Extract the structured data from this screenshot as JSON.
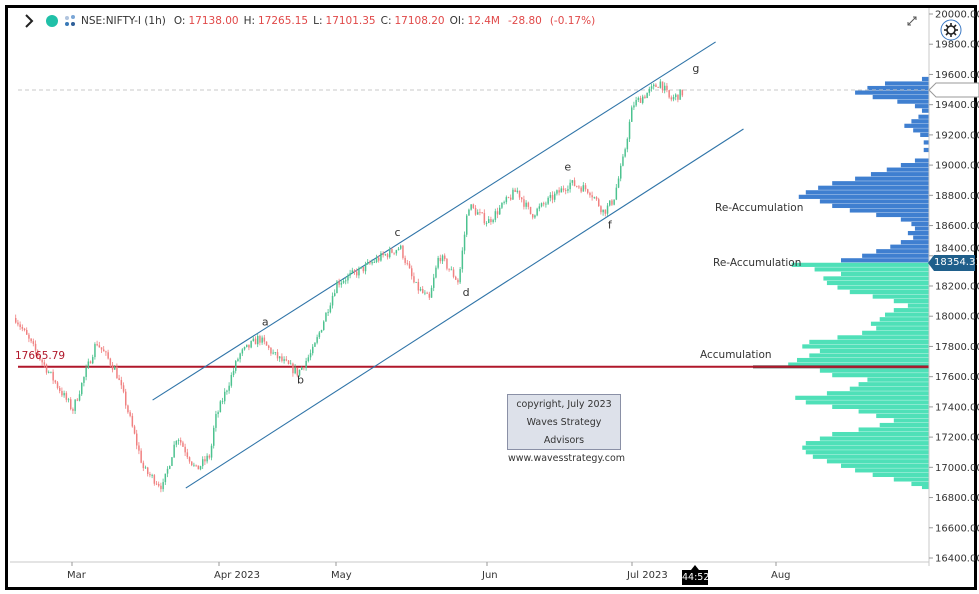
{
  "header": {
    "symbol": "NSE:NIFTY-I (1h)",
    "open_label": "O:",
    "open": "17138.00",
    "high_label": "H:",
    "high": "17265.15",
    "low_label": "L:",
    "low": "17101.35",
    "close_label": "C:",
    "close": "17108.20",
    "oi_label": "OI:",
    "oi": "12.4M",
    "change": "-28.80",
    "change_pct": "(-0.17%)",
    "icons": [
      "chevron-right-icon",
      "status-dot-icon",
      "symbol-logo-icon"
    ]
  },
  "toolbar": {
    "icons": [
      "expand-icon",
      "settings-gear-icon"
    ]
  },
  "colors": {
    "up_candle": "#4cc28f",
    "down_candle": "#f08080",
    "channel": "#2f74a8",
    "support_line": "#b0172a",
    "profile_upper": "#3f7fd0",
    "profile_lower": "#4fe0b8",
    "poc": "#555555",
    "last_price_bg": "#1f5f8b",
    "value_text": "#e04848"
  },
  "reference_line": {
    "price": 17665.79,
    "label": "17665.79"
  },
  "last_price": {
    "value": 18354.31,
    "label": "18354.31"
  },
  "dashed_price": 19497,
  "countdown": "44:52",
  "annotations": [
    {
      "text": "Re-Accumulation"
    },
    {
      "text": "Re-Accumulation"
    },
    {
      "text": "Accumulation"
    }
  ],
  "copyright": {
    "line1": "copyright, July 2023",
    "line2": "Waves Strategy Advisors",
    "line3": "www.wavesstrategy.com"
  },
  "chart_data": {
    "type": "candlestick",
    "timeframe": "1h",
    "y_axis": {
      "range": [
        16400,
        20000
      ],
      "ticks": [
        "20000.00",
        "19800.00",
        "19600.00",
        "19400.00",
        "19200.00",
        "19000.00",
        "18800.00",
        "18600.00",
        "18400.00",
        "18200.00",
        "18000.00",
        "17800.00",
        "17600.00",
        "17400.00",
        "17200.00",
        "17000.00",
        "16800.00",
        "16600.00",
        "16400.00"
      ]
    },
    "x_axis": {
      "ticks": [
        "Mar",
        "Apr 2023",
        "May",
        "Jun",
        "Jul 2023",
        "Aug"
      ]
    },
    "grid": false,
    "price_path": [
      [
        "2023-02-17",
        17988
      ],
      [
        "2023-02-21",
        17776
      ],
      [
        "2023-03-01",
        17380
      ],
      [
        "2023-03-06",
        17830
      ],
      [
        "2023-03-10",
        17645
      ],
      [
        "2023-03-12",
        17445
      ],
      [
        "2023-03-16",
        16982
      ],
      [
        "2023-03-20",
        16870
      ],
      [
        "2023-03-23",
        17214
      ],
      [
        "2023-03-27",
        16982
      ],
      [
        "2023-03-30",
        17080
      ],
      [
        "2023-03-31",
        17313
      ],
      [
        "2023-04-06",
        17743
      ],
      [
        "2023-04-11",
        17856
      ],
      [
        "2023-04-15",
        17743
      ],
      [
        "2023-04-21",
        17624
      ],
      [
        "2023-04-25",
        17776
      ],
      [
        "2023-05-01",
        18220
      ],
      [
        "2023-05-06",
        18306
      ],
      [
        "2023-05-09",
        18372
      ],
      [
        "2023-05-14",
        18458
      ],
      [
        "2023-05-17",
        18207
      ],
      [
        "2023-05-20",
        18107
      ],
      [
        "2023-05-22",
        18405
      ],
      [
        "2023-05-26",
        18227
      ],
      [
        "2023-05-28",
        18736
      ],
      [
        "2023-06-01",
        18623
      ],
      [
        "2023-06-07",
        18835
      ],
      [
        "2023-06-10",
        18670
      ],
      [
        "2023-06-18",
        18881
      ],
      [
        "2023-06-22",
        18835
      ],
      [
        "2023-06-25",
        18690
      ],
      [
        "2023-06-27",
        18770
      ],
      [
        "2023-06-29",
        19034
      ],
      [
        "2023-07-01",
        19398
      ],
      [
        "2023-07-07",
        19550
      ],
      [
        "2023-07-09",
        19431
      ],
      [
        "2023-07-12",
        19484
      ]
    ],
    "wave_labels": [
      {
        "text": "a",
        "date": "2023-04-12",
        "price": 17940
      },
      {
        "text": "b",
        "date": "2023-04-21",
        "price": 17555
      },
      {
        "text": "c",
        "date": "2023-05-13",
        "price": 18530
      },
      {
        "text": "d",
        "date": "2023-05-27",
        "price": 18135
      },
      {
        "text": "e",
        "date": "2023-06-17",
        "price": 18965
      },
      {
        "text": "f",
        "date": "2023-06-26",
        "price": 18580
      },
      {
        "text": "g",
        "date": "2023-07-14",
        "price": 19615
      }
    ],
    "channel": {
      "upper": [
        [
          "2023-03-18",
          17445
        ],
        [
          "2023-07-19",
          19815
        ]
      ],
      "lower": [
        [
          "2023-03-25",
          16863
        ],
        [
          "2023-07-25",
          19239
        ]
      ]
    },
    "volume_profile": [
      [
        19570,
        0.04
      ],
      [
        19540,
        0.25
      ],
      [
        19510,
        0.35
      ],
      [
        19480,
        0.42
      ],
      [
        19450,
        0.32
      ],
      [
        19420,
        0.18
      ],
      [
        19390,
        0.08
      ],
      [
        19360,
        0.04
      ],
      [
        19320,
        0.06
      ],
      [
        19290,
        0.1
      ],
      [
        19260,
        0.14
      ],
      [
        19230,
        0.09
      ],
      [
        19200,
        0.05
      ],
      [
        19150,
        0.03
      ],
      [
        19100,
        0.03
      ],
      [
        19030,
        0.08
      ],
      [
        19000,
        0.16
      ],
      [
        18970,
        0.24
      ],
      [
        18940,
        0.33
      ],
      [
        18910,
        0.42
      ],
      [
        18880,
        0.55
      ],
      [
        18850,
        0.63
      ],
      [
        18820,
        0.7
      ],
      [
        18790,
        0.74
      ],
      [
        18760,
        0.62
      ],
      [
        18730,
        0.55
      ],
      [
        18700,
        0.45
      ],
      [
        18670,
        0.3
      ],
      [
        18640,
        0.16
      ],
      [
        18610,
        0.1
      ],
      [
        18580,
        0.08
      ],
      [
        18550,
        0.12
      ],
      [
        18520,
        0.09
      ],
      [
        18490,
        0.16
      ],
      [
        18460,
        0.22
      ],
      [
        18430,
        0.3
      ],
      [
        18400,
        0.38
      ],
      [
        18370,
        0.5
      ],
      [
        18340,
        0.78
      ],
      [
        18310,
        0.65
      ],
      [
        18280,
        0.5
      ],
      [
        18250,
        0.6
      ],
      [
        18220,
        0.58
      ],
      [
        18190,
        0.52
      ],
      [
        18160,
        0.45
      ],
      [
        18130,
        0.32
      ],
      [
        18100,
        0.2
      ],
      [
        18070,
        0.12
      ],
      [
        18040,
        0.2
      ],
      [
        18010,
        0.25
      ],
      [
        17980,
        0.28
      ],
      [
        17950,
        0.33
      ],
      [
        17920,
        0.3
      ],
      [
        17890,
        0.38
      ],
      [
        17860,
        0.52
      ],
      [
        17830,
        0.68
      ],
      [
        17800,
        0.72
      ],
      [
        17770,
        0.62
      ],
      [
        17740,
        0.68
      ],
      [
        17710,
        0.75
      ],
      [
        17680,
        0.8
      ],
      [
        17665,
        1.0
      ],
      [
        17640,
        0.62
      ],
      [
        17610,
        0.55
      ],
      [
        17580,
        0.35
      ],
      [
        17550,
        0.4
      ],
      [
        17520,
        0.45
      ],
      [
        17490,
        0.58
      ],
      [
        17460,
        0.76
      ],
      [
        17430,
        0.7
      ],
      [
        17400,
        0.55
      ],
      [
        17370,
        0.4
      ],
      [
        17340,
        0.3
      ],
      [
        17310,
        0.2
      ],
      [
        17280,
        0.28
      ],
      [
        17250,
        0.4
      ],
      [
        17220,
        0.55
      ],
      [
        17190,
        0.62
      ],
      [
        17160,
        0.7
      ],
      [
        17130,
        0.72
      ],
      [
        17100,
        0.7
      ],
      [
        17070,
        0.66
      ],
      [
        17040,
        0.58
      ],
      [
        17010,
        0.5
      ],
      [
        16980,
        0.42
      ],
      [
        16950,
        0.32
      ],
      [
        16920,
        0.2
      ],
      [
        16890,
        0.1
      ],
      [
        16870,
        0.04
      ]
    ]
  }
}
